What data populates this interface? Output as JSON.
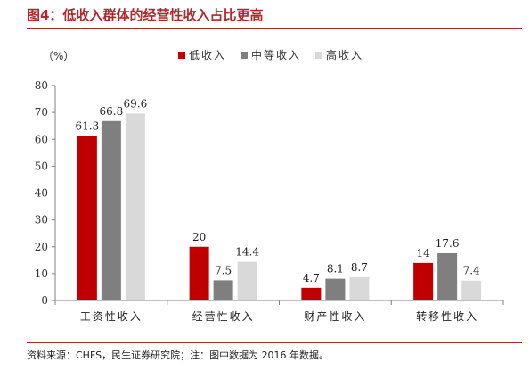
{
  "header": {
    "title": "图4：低收入群体的经营性收入占比更高"
  },
  "footer": {
    "source": "资料来源：CHFS，民生证券研究院；注：图中数据为 2016 年数据。"
  },
  "chart_data": {
    "type": "bar",
    "unit_label": "（%）",
    "categories": [
      "工资性收入",
      "经营性收入",
      "财产性收入",
      "转移性收入"
    ],
    "series": [
      {
        "name": "低收入",
        "color": "#c00000",
        "values": [
          61.3,
          20,
          4.7,
          14
        ]
      },
      {
        "name": "中等收入",
        "color": "#7f7f7f",
        "values": [
          66.8,
          7.5,
          8.1,
          17.6
        ]
      },
      {
        "name": "高收入",
        "color": "#d9d9d9",
        "values": [
          69.6,
          14.4,
          8.7,
          7.4
        ]
      }
    ],
    "value_labels": [
      [
        "61.3",
        "20",
        "4.7",
        "14"
      ],
      [
        "66.8",
        "7.5",
        "8.1",
        "17.6"
      ],
      [
        "69.6",
        "14.4",
        "8.7",
        "7.4"
      ]
    ],
    "ylim": [
      0,
      80
    ],
    "yticks": [
      0,
      10,
      20,
      30,
      40,
      50,
      60,
      70,
      80
    ],
    "legend_position": "top-right",
    "grid": false
  }
}
